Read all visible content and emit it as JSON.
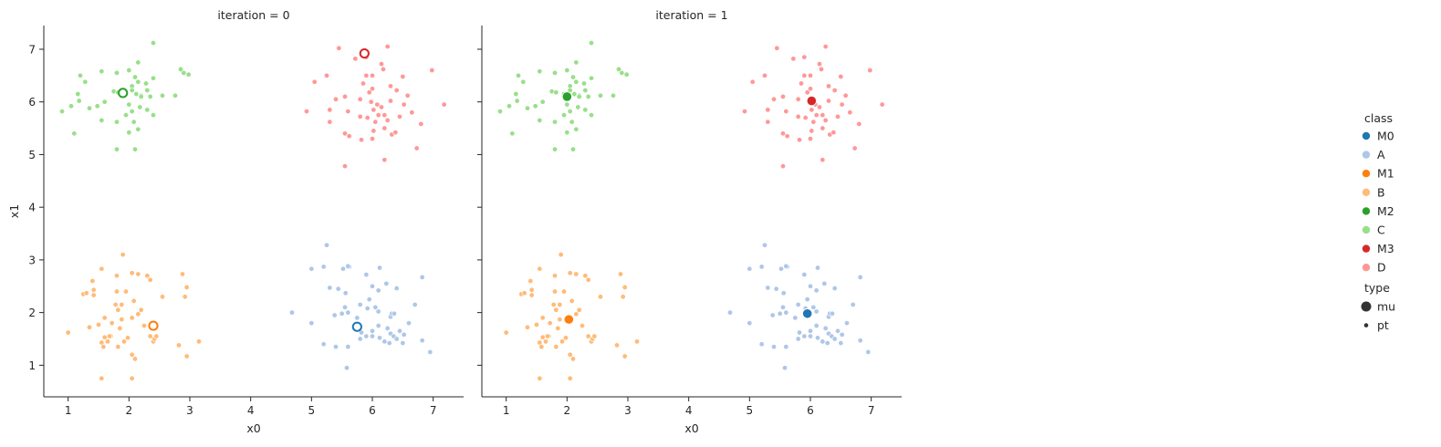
{
  "chart_data": {
    "type": "scatter",
    "facet_variable": "iteration",
    "x_label": "x0",
    "y_label": "x1",
    "xlim": [
      0.6,
      7.5
    ],
    "ylim": [
      0.4,
      7.45
    ],
    "x_ticks": [
      1,
      2,
      3,
      4,
      5,
      6,
      7
    ],
    "y_ticks": [
      1,
      2,
      3,
      4,
      5,
      6,
      7
    ],
    "grid": false,
    "legend_placement": "right",
    "colors": {
      "M0": "#1f77b4",
      "A": "#aec7e8",
      "M1": "#ff7f0e",
      "B": "#ffbb78",
      "M2": "#2ca02c",
      "C": "#98df8a",
      "M3": "#d62728",
      "D": "#ff9896"
    },
    "legend": {
      "class_title": "class",
      "class_items": [
        "M0",
        "A",
        "M1",
        "B",
        "M2",
        "C",
        "M3",
        "D"
      ],
      "type_title": "type",
      "type_items": [
        "mu",
        "pt"
      ]
    },
    "points": {
      "A": [
        [
          5.25,
          3.28
        ],
        [
          5.0,
          2.83
        ],
        [
          5.2,
          2.87
        ],
        [
          5.52,
          2.83
        ],
        [
          5.62,
          2.87
        ],
        [
          5.6,
          2.88
        ],
        [
          6.12,
          2.85
        ],
        [
          5.9,
          2.72
        ],
        [
          6.82,
          2.67
        ],
        [
          5.3,
          2.47
        ],
        [
          5.44,
          2.45
        ],
        [
          5.56,
          2.37
        ],
        [
          6.23,
          2.55
        ],
        [
          6.4,
          2.46
        ],
        [
          6.0,
          2.5
        ],
        [
          6.1,
          2.42
        ],
        [
          4.68,
          2.0
        ],
        [
          5.38,
          1.95
        ],
        [
          5.5,
          1.98
        ],
        [
          5.55,
          2.1
        ],
        [
          5.6,
          2.0
        ],
        [
          5.8,
          2.15
        ],
        [
          5.92,
          2.08
        ],
        [
          5.95,
          2.25
        ],
        [
          6.05,
          2.1
        ],
        [
          6.1,
          2.02
        ],
        [
          6.3,
          1.92
        ],
        [
          6.32,
          1.98
        ],
        [
          6.36,
          1.98
        ],
        [
          6.7,
          2.15
        ],
        [
          5.0,
          1.8
        ],
        [
          5.82,
          1.62
        ],
        [
          5.9,
          1.55
        ],
        [
          5.8,
          1.5
        ],
        [
          6.0,
          1.55
        ],
        [
          6.12,
          1.52
        ],
        [
          6.2,
          1.45
        ],
        [
          6.25,
          1.7
        ],
        [
          6.3,
          1.6
        ],
        [
          6.35,
          1.55
        ],
        [
          6.4,
          1.5
        ],
        [
          6.45,
          1.65
        ],
        [
          6.5,
          1.42
        ],
        [
          6.52,
          1.58
        ],
        [
          6.28,
          1.42
        ],
        [
          6.82,
          1.47
        ],
        [
          6.95,
          1.25
        ],
        [
          5.2,
          1.4
        ],
        [
          5.4,
          1.35
        ],
        [
          5.6,
          1.35
        ],
        [
          5.58,
          0.95
        ],
        [
          6.0,
          1.65
        ],
        [
          6.1,
          1.75
        ],
        [
          6.6,
          1.8
        ],
        [
          5.75,
          1.9
        ]
      ],
      "B": [
        [
          1.9,
          3.1
        ],
        [
          1.55,
          2.83
        ],
        [
          1.4,
          2.6
        ],
        [
          1.8,
          2.7
        ],
        [
          2.05,
          2.75
        ],
        [
          2.15,
          2.73
        ],
        [
          2.3,
          2.7
        ],
        [
          2.35,
          2.62
        ],
        [
          2.88,
          2.73
        ],
        [
          2.95,
          2.48
        ],
        [
          1.25,
          2.35
        ],
        [
          1.3,
          2.37
        ],
        [
          1.42,
          2.43
        ],
        [
          1.42,
          2.33
        ],
        [
          1.8,
          2.4
        ],
        [
          1.95,
          2.4
        ],
        [
          2.08,
          2.22
        ],
        [
          2.92,
          2.3
        ],
        [
          2.55,
          2.3
        ],
        [
          1.78,
          2.15
        ],
        [
          1.88,
          2.15
        ],
        [
          1.35,
          1.72
        ],
        [
          1.5,
          1.77
        ],
        [
          1.6,
          1.9
        ],
        [
          1.72,
          1.8
        ],
        [
          1.82,
          2.05
        ],
        [
          1.88,
          1.87
        ],
        [
          2.05,
          1.9
        ],
        [
          2.15,
          1.97
        ],
        [
          2.2,
          2.05
        ],
        [
          2.25,
          1.75
        ],
        [
          1.7,
          1.55
        ],
        [
          1.85,
          1.7
        ],
        [
          1.6,
          1.53
        ],
        [
          1.55,
          1.43
        ],
        [
          1.65,
          1.45
        ],
        [
          1.68,
          1.55
        ],
        [
          1.92,
          1.45
        ],
        [
          1.98,
          1.52
        ],
        [
          2.35,
          1.55
        ],
        [
          2.4,
          1.45
        ],
        [
          2.42,
          1.5
        ],
        [
          2.05,
          1.2
        ],
        [
          2.1,
          1.12
        ],
        [
          1.58,
          1.35
        ],
        [
          1.82,
          1.35
        ],
        [
          2.82,
          1.38
        ],
        [
          3.15,
          1.45
        ],
        [
          2.95,
          1.17
        ],
        [
          1.0,
          1.62
        ],
        [
          1.55,
          0.75
        ],
        [
          2.05,
          0.75
        ],
        [
          2.45,
          1.55
        ]
      ],
      "C": [
        [
          2.4,
          7.12
        ],
        [
          1.2,
          6.5
        ],
        [
          1.28,
          6.38
        ],
        [
          1.55,
          6.58
        ],
        [
          1.8,
          6.55
        ],
        [
          2.0,
          6.6
        ],
        [
          2.1,
          6.47
        ],
        [
          2.05,
          6.3
        ],
        [
          2.28,
          6.35
        ],
        [
          2.15,
          6.38
        ],
        [
          2.4,
          6.45
        ],
        [
          2.85,
          6.62
        ],
        [
          2.9,
          6.55
        ],
        [
          2.98,
          6.52
        ],
        [
          2.15,
          6.75
        ],
        [
          1.16,
          6.15
        ],
        [
          1.18,
          6.02
        ],
        [
          1.48,
          5.92
        ],
        [
          1.75,
          6.2
        ],
        [
          1.82,
          6.18
        ],
        [
          1.95,
          6.15
        ],
        [
          2.05,
          6.22
        ],
        [
          2.12,
          6.15
        ],
        [
          2.2,
          6.12
        ],
        [
          2.3,
          6.22
        ],
        [
          2.35,
          6.1
        ],
        [
          2.55,
          6.12
        ],
        [
          2.76,
          6.12
        ],
        [
          2.2,
          6.1
        ],
        [
          1.05,
          5.92
        ],
        [
          1.35,
          5.88
        ],
        [
          2.0,
          5.95
        ],
        [
          2.18,
          5.9
        ],
        [
          2.05,
          5.82
        ],
        [
          2.3,
          5.85
        ],
        [
          2.4,
          5.75
        ],
        [
          0.9,
          5.82
        ],
        [
          1.55,
          5.65
        ],
        [
          1.8,
          5.62
        ],
        [
          2.08,
          5.62
        ],
        [
          2.15,
          5.48
        ],
        [
          2.0,
          5.42
        ],
        [
          1.1,
          5.4
        ],
        [
          1.8,
          5.1
        ],
        [
          2.1,
          5.1
        ],
        [
          1.6,
          6.0
        ],
        [
          1.95,
          5.75
        ]
      ],
      "D": [
        [
          5.45,
          7.02
        ],
        [
          6.25,
          7.05
        ],
        [
          5.9,
          6.85
        ],
        [
          5.72,
          6.82
        ],
        [
          6.15,
          6.72
        ],
        [
          6.18,
          6.62
        ],
        [
          6.98,
          6.6
        ],
        [
          5.25,
          6.5
        ],
        [
          5.9,
          6.5
        ],
        [
          6.0,
          6.5
        ],
        [
          5.05,
          6.38
        ],
        [
          6.5,
          6.48
        ],
        [
          5.85,
          6.35
        ],
        [
          6.0,
          6.25
        ],
        [
          5.95,
          6.18
        ],
        [
          6.3,
          6.3
        ],
        [
          6.4,
          6.22
        ],
        [
          6.58,
          6.12
        ],
        [
          5.4,
          6.05
        ],
        [
          5.55,
          6.1
        ],
        [
          5.8,
          6.05
        ],
        [
          6.3,
          6.02
        ],
        [
          5.98,
          6.0
        ],
        [
          6.08,
          5.95
        ],
        [
          6.15,
          5.9
        ],
        [
          6.52,
          5.95
        ],
        [
          7.18,
          5.95
        ],
        [
          5.3,
          5.85
        ],
        [
          5.6,
          5.82
        ],
        [
          6.02,
          5.85
        ],
        [
          6.1,
          5.75
        ],
        [
          4.92,
          5.82
        ],
        [
          5.8,
          5.72
        ],
        [
          5.92,
          5.7
        ],
        [
          6.2,
          5.75
        ],
        [
          6.25,
          5.65
        ],
        [
          6.45,
          5.72
        ],
        [
          6.65,
          5.8
        ],
        [
          5.3,
          5.62
        ],
        [
          6.8,
          5.58
        ],
        [
          6.2,
          5.5
        ],
        [
          6.02,
          5.45
        ],
        [
          5.55,
          5.4
        ],
        [
          5.82,
          5.28
        ],
        [
          6.0,
          5.3
        ],
        [
          6.32,
          5.38
        ],
        [
          6.38,
          5.42
        ],
        [
          5.62,
          5.35
        ],
        [
          6.73,
          5.12
        ],
        [
          6.2,
          4.9
        ],
        [
          5.55,
          4.78
        ],
        [
          6.05,
          5.62
        ]
      ]
    },
    "facets": [
      {
        "title": "iteration = 0",
        "mu": {
          "M0": [
            5.75,
            1.73
          ],
          "M1": [
            2.4,
            1.75
          ],
          "M2": [
            1.9,
            6.17
          ],
          "M3": [
            5.87,
            6.92
          ]
        }
      },
      {
        "title": "iteration = 1",
        "mu": {
          "M0": [
            5.95,
            1.98
          ],
          "M1": [
            2.03,
            1.87
          ],
          "M2": [
            2.0,
            6.1
          ],
          "M3": [
            6.02,
            6.02
          ]
        }
      }
    ]
  }
}
